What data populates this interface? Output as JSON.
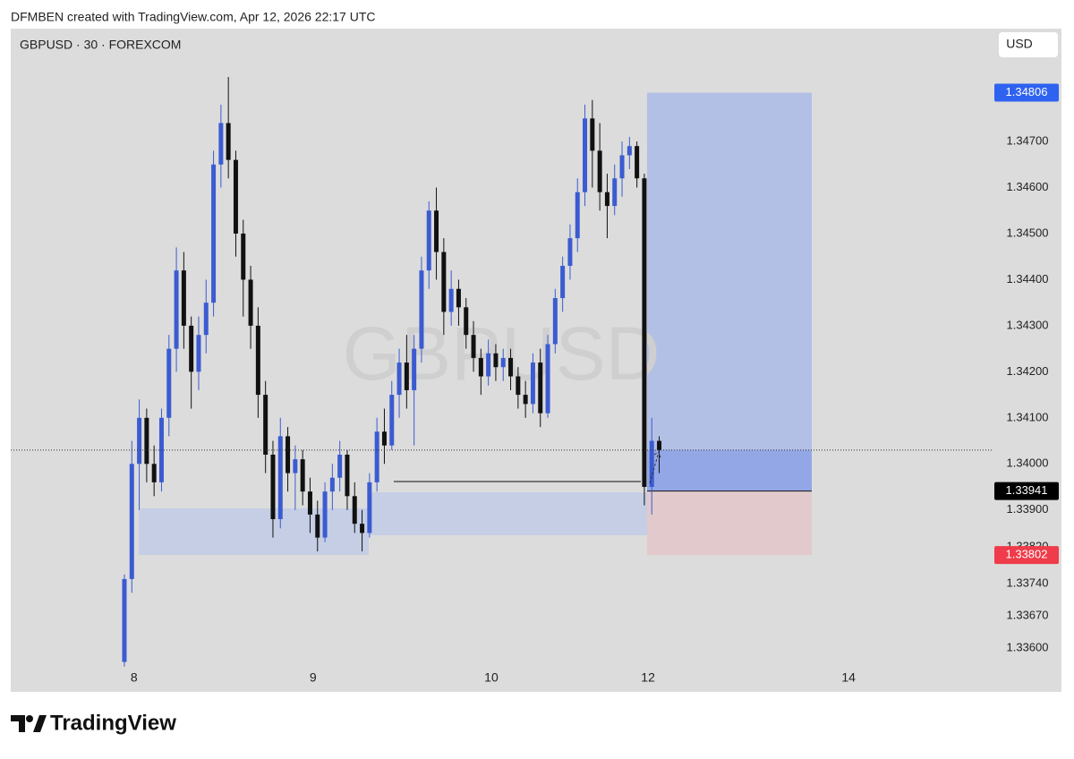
{
  "header": {
    "credit": "DFMBEN created with TradingView.com, Apr 12, 2026 22:17 UTC"
  },
  "footer": {
    "brand": "TradingView"
  },
  "chart_data": {
    "type": "candlestick",
    "title": "GBPUSD · 30 · FOREXCOM",
    "watermark": "GBPUSD",
    "currency": "USD",
    "up_color": "#3b5bd1",
    "down_color": "#111111",
    "x": [
      0,
      1,
      2,
      3,
      4,
      5,
      6,
      7,
      8,
      9,
      10,
      11,
      12,
      13,
      14,
      15,
      16,
      17,
      18,
      19,
      20,
      21,
      22,
      23,
      24,
      25,
      26,
      27,
      28,
      29,
      30,
      31,
      32,
      33,
      34,
      35,
      36,
      37,
      38,
      39,
      40,
      41,
      42,
      43,
      44,
      45,
      46,
      47,
      48,
      49,
      50,
      51,
      52,
      53,
      54,
      55,
      56,
      57,
      58,
      59,
      60,
      61,
      62,
      63,
      64,
      65,
      66,
      67,
      68,
      69,
      70,
      71,
      72
    ],
    "open": [
      1.3357,
      1.3375,
      1.34,
      1.341,
      1.34,
      1.3396,
      1.341,
      1.3425,
      1.3442,
      1.343,
      1.342,
      1.3428,
      1.3435,
      1.3465,
      1.3474,
      1.3466,
      1.345,
      1.344,
      1.343,
      1.3415,
      1.3402,
      1.3388,
      1.3406,
      1.3398,
      1.3401,
      1.3394,
      1.3389,
      1.3384,
      1.3394,
      1.3397,
      1.3402,
      1.3393,
      1.3387,
      1.3385,
      1.3396,
      1.3407,
      1.3404,
      1.3415,
      1.3422,
      1.3416,
      1.3425,
      1.3442,
      1.3455,
      1.3446,
      1.3433,
      1.3438,
      1.3434,
      1.3428,
      1.3423,
      1.3419,
      1.3424,
      1.3421,
      1.3423,
      1.3419,
      1.3415,
      1.3413,
      1.3422,
      1.3411,
      1.3426,
      1.3436,
      1.3443,
      1.3449,
      1.3459,
      1.3475,
      1.3468,
      1.3459,
      1.3456,
      1.3462,
      1.3467,
      1.3469,
      1.3462,
      1.3395,
      1.3405
    ],
    "high": [
      1.3376,
      1.3405,
      1.3414,
      1.3412,
      1.3404,
      1.3412,
      1.3428,
      1.3447,
      1.3446,
      1.3432,
      1.3432,
      1.344,
      1.3468,
      1.3478,
      1.3484,
      1.3468,
      1.3453,
      1.3443,
      1.3434,
      1.3418,
      1.3405,
      1.341,
      1.3408,
      1.3404,
      1.3403,
      1.3397,
      1.3392,
      1.3396,
      1.34,
      1.3405,
      1.3403,
      1.3396,
      1.339,
      1.3398,
      1.341,
      1.3412,
      1.3418,
      1.3425,
      1.3428,
      1.3428,
      1.3445,
      1.3457,
      1.346,
      1.3449,
      1.3442,
      1.344,
      1.3436,
      1.3431,
      1.3425,
      1.3427,
      1.3426,
      1.3425,
      1.3425,
      1.3421,
      1.3418,
      1.3424,
      1.3425,
      1.3428,
      1.3438,
      1.3445,
      1.3452,
      1.3462,
      1.3478,
      1.3479,
      1.3474,
      1.3463,
      1.3465,
      1.347,
      1.3471,
      1.347,
      1.3463,
      1.341,
      1.3406
    ],
    "low": [
      1.3356,
      1.3372,
      1.339,
      1.3396,
      1.3393,
      1.3394,
      1.3406,
      1.342,
      1.3425,
      1.3412,
      1.3416,
      1.3424,
      1.3432,
      1.346,
      1.3462,
      1.3445,
      1.3432,
      1.3425,
      1.341,
      1.3398,
      1.3384,
      1.3386,
      1.3394,
      1.339,
      1.3391,
      1.3385,
      1.3381,
      1.3383,
      1.339,
      1.3394,
      1.339,
      1.3385,
      1.3381,
      1.3384,
      1.3394,
      1.34,
      1.3403,
      1.341,
      1.3412,
      1.3404,
      1.3422,
      1.3438,
      1.344,
      1.3428,
      1.343,
      1.343,
      1.3425,
      1.342,
      1.3415,
      1.3417,
      1.3418,
      1.3418,
      1.3416,
      1.3412,
      1.341,
      1.3411,
      1.3408,
      1.341,
      1.3424,
      1.3433,
      1.344,
      1.3446,
      1.3456,
      1.346,
      1.3455,
      1.3449,
      1.3454,
      1.3458,
      1.3464,
      1.346,
      1.3391,
      1.3389,
      1.3398
    ],
    "close": [
      1.3375,
      1.34,
      1.341,
      1.34,
      1.3396,
      1.341,
      1.3425,
      1.3442,
      1.343,
      1.342,
      1.3428,
      1.3435,
      1.3465,
      1.3474,
      1.3466,
      1.345,
      1.344,
      1.343,
      1.3415,
      1.3402,
      1.3388,
      1.3406,
      1.3398,
      1.3401,
      1.3394,
      1.3389,
      1.3384,
      1.3394,
      1.3397,
      1.3402,
      1.3393,
      1.3387,
      1.3385,
      1.3396,
      1.3407,
      1.3404,
      1.3415,
      1.3422,
      1.3416,
      1.3425,
      1.3442,
      1.3455,
      1.3446,
      1.3433,
      1.3438,
      1.3434,
      1.3428,
      1.3423,
      1.3419,
      1.3424,
      1.3421,
      1.3423,
      1.3419,
      1.3415,
      1.3413,
      1.3422,
      1.3411,
      1.3426,
      1.3436,
      1.3443,
      1.3449,
      1.3459,
      1.3475,
      1.3468,
      1.3459,
      1.3456,
      1.3462,
      1.3467,
      1.3469,
      1.3462,
      1.3395,
      1.3405,
      1.3403
    ],
    "xlim": [
      -15.3,
      117
    ],
    "xticks": [
      {
        "value": 1.3,
        "label": "8"
      },
      {
        "value": 25.4,
        "label": "9"
      },
      {
        "value": 49.4,
        "label": "10"
      },
      {
        "value": 70.5,
        "label": "12"
      },
      {
        "value": 97.5,
        "label": "14"
      }
    ],
    "ylim": [
      1.33505,
      1.34945
    ],
    "yticks": [
      {
        "value": 1.347,
        "label": "1.34700"
      },
      {
        "value": 1.346,
        "label": "1.34600"
      },
      {
        "value": 1.345,
        "label": "1.34500"
      },
      {
        "value": 1.344,
        "label": "1.34400"
      },
      {
        "value": 1.343,
        "label": "1.34300"
      },
      {
        "value": 1.342,
        "label": "1.34200"
      },
      {
        "value": 1.341,
        "label": "1.34100"
      },
      {
        "value": 1.34,
        "label": "1.34000"
      },
      {
        "value": 1.339,
        "label": "1.33900"
      },
      {
        "value": 1.3382,
        "label": "1.33820"
      },
      {
        "value": 1.3374,
        "label": "1.33740"
      },
      {
        "value": 1.3367,
        "label": "1.33670"
      },
      {
        "value": 1.336,
        "label": "1.33600"
      }
    ],
    "position": {
      "target": {
        "value": 1.34806,
        "label": "1.34806"
      },
      "entry": {
        "value": 1.33941,
        "label": "1.33941"
      },
      "stop": {
        "value": 1.33802,
        "label": "1.33802"
      }
    }
  }
}
